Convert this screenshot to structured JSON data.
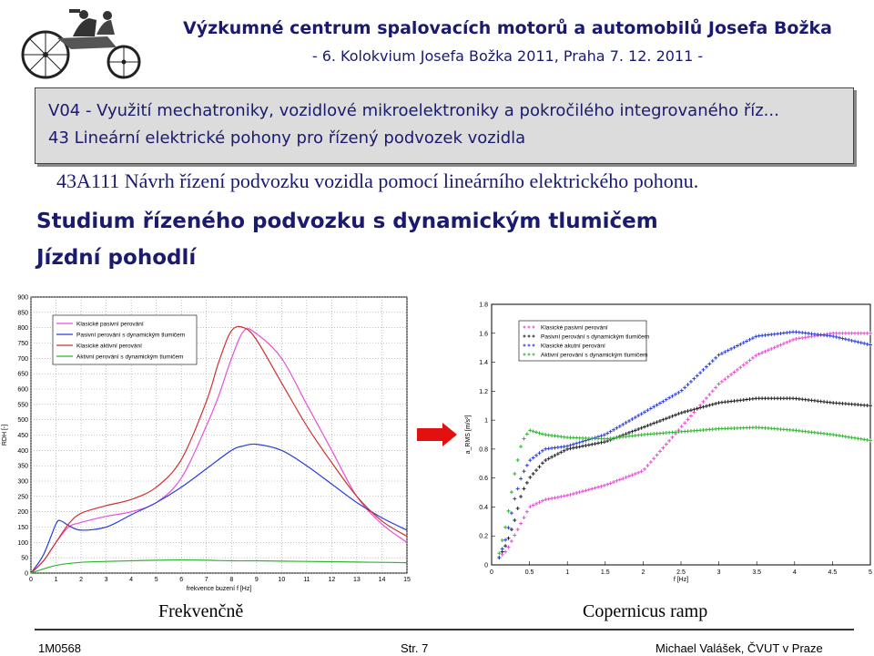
{
  "header": {
    "title": "Výzkumné centrum spalovacích motorů a automobilů Josefa Božka",
    "subtitle": "- 6. Kolokvium Josefa Božka 2011, Praha 7. 12. 2011 -"
  },
  "topic_box": {
    "line1": "V04 - Využití mechatroniky, vozidlové mikroelektroniky a pokročilého integrovaného říz...",
    "line2": "43 Lineární elektrické pohony pro řízený podvozek vozidla"
  },
  "subtopic": "43A111 Návrh řízení podvozku vozidla pomocí lineárního elektrického pohonu.",
  "heading1": "Studium řízeného podvozku s dynamickým tlumičem",
  "heading2": "Jízdní pohodlí",
  "captions": {
    "left": "Frekvenčně",
    "right": "Copernicus ramp"
  },
  "footer": {
    "left": "1M0568",
    "center": "Str. 7",
    "right": "Michael Valášek, ČVUT v Praze"
  },
  "colors": {
    "navy": "#1a1a6e",
    "arrow": "#e31010"
  },
  "chart_data": [
    {
      "type": "line",
      "ylabel": "RDH [-]",
      "xlabel": "frekvence buzení f [Hz]",
      "xlim": [
        0,
        15
      ],
      "ylim": [
        0,
        900
      ],
      "xticks": [
        0,
        1,
        2,
        3,
        4,
        5,
        6,
        7,
        8,
        9,
        10,
        11,
        12,
        13,
        14,
        15
      ],
      "yticks": [
        0,
        50,
        100,
        150,
        200,
        250,
        300,
        350,
        400,
        450,
        500,
        550,
        600,
        650,
        700,
        750,
        800,
        850,
        900
      ],
      "grid": true,
      "legend": "top-left",
      "series": [
        {
          "name": "Klasické pasivní perování",
          "color": "#e64fd6",
          "x": [
            0,
            0.5,
            1,
            1.5,
            2,
            3,
            4,
            5,
            6,
            7,
            7.5,
            8,
            8.5,
            9,
            10,
            11,
            12,
            13,
            14,
            15
          ],
          "y": [
            0,
            40,
            100,
            150,
            165,
            185,
            200,
            230,
            310,
            480,
            580,
            700,
            790,
            780,
            700,
            550,
            400,
            250,
            160,
            100
          ]
        },
        {
          "name": "Pasivní perování s dynamickým tlumičem",
          "color": "#2b3fd6",
          "x": [
            0,
            0.5,
            1,
            1.2,
            1.5,
            2,
            3,
            4,
            5,
            6,
            7,
            8,
            8.5,
            9,
            10,
            11,
            12,
            13,
            14,
            15
          ],
          "y": [
            0,
            60,
            160,
            170,
            155,
            140,
            150,
            190,
            230,
            280,
            340,
            400,
            415,
            420,
            400,
            350,
            290,
            230,
            180,
            140
          ]
        },
        {
          "name": "Klasické aktivní perování",
          "color": "#d03030",
          "x": [
            0,
            0.5,
            1,
            1.5,
            2,
            3,
            4,
            5,
            6,
            7,
            7.5,
            8,
            8.5,
            9,
            10,
            11,
            12,
            13,
            14,
            15
          ],
          "y": [
            0,
            40,
            100,
            160,
            195,
            220,
            240,
            280,
            370,
            560,
            690,
            790,
            800,
            760,
            620,
            480,
            360,
            250,
            170,
            120
          ]
        },
        {
          "name": "Aktivní perování s dynamickým tlumičem",
          "color": "#2fb52f",
          "x": [
            0,
            1,
            2,
            3,
            4,
            5,
            6,
            7,
            8,
            9,
            10,
            11,
            12,
            13,
            14,
            15
          ],
          "y": [
            0,
            25,
            35,
            38,
            40,
            42,
            43,
            42,
            40,
            40,
            39,
            38,
            37,
            36,
            35,
            34
          ]
        }
      ]
    },
    {
      "type": "scatter",
      "ylabel": "a_RMS [m/s²]",
      "xlabel": "f [Hz]",
      "xlim": [
        0,
        5
      ],
      "ylim": [
        0,
        1.8
      ],
      "xticks": [
        0,
        0.5,
        1,
        1.5,
        2,
        2.5,
        3,
        3.5,
        4,
        4.5,
        5
      ],
      "yticks": [
        0,
        0.2,
        0.4,
        0.6,
        0.8,
        1,
        1.2,
        1.4,
        1.6,
        1.8
      ],
      "grid": false,
      "legend": "top-left",
      "series": [
        {
          "name": "Klasické pasivní perování",
          "color": "#e64fd6",
          "x": [
            0.1,
            0.2,
            0.3,
            0.4,
            0.5,
            0.7,
            1,
            1.5,
            2,
            2.5,
            3,
            3.5,
            4,
            4.5,
            5
          ],
          "y": [
            0.05,
            0.1,
            0.2,
            0.3,
            0.4,
            0.45,
            0.48,
            0.55,
            0.65,
            0.95,
            1.25,
            1.45,
            1.56,
            1.6,
            1.6
          ]
        },
        {
          "name": "Pasivní perování s dynamickým tlumičem",
          "color": "#222222",
          "x": [
            0.1,
            0.2,
            0.3,
            0.4,
            0.5,
            0.7,
            1,
            1.5,
            2,
            2.5,
            3,
            3.5,
            4,
            4.5,
            5
          ],
          "y": [
            0.05,
            0.15,
            0.3,
            0.5,
            0.6,
            0.72,
            0.8,
            0.85,
            0.95,
            1.05,
            1.12,
            1.15,
            1.15,
            1.12,
            1.1
          ]
        },
        {
          "name": "Klasické akutní perování",
          "color": "#2b3fd6",
          "x": [
            0.1,
            0.2,
            0.3,
            0.4,
            0.5,
            0.7,
            1,
            1.5,
            2,
            2.5,
            3,
            3.5,
            4,
            4.5,
            5
          ],
          "y": [
            0.05,
            0.2,
            0.45,
            0.62,
            0.72,
            0.8,
            0.82,
            0.9,
            1.05,
            1.2,
            1.45,
            1.58,
            1.61,
            1.58,
            1.52
          ]
        },
        {
          "name": "Aktivní perování s dynamickým tlumičem",
          "color": "#2fb52f",
          "x": [
            0.1,
            0.2,
            0.3,
            0.4,
            0.5,
            0.7,
            1,
            1.5,
            2,
            2.5,
            3,
            3.5,
            4,
            4.5,
            5
          ],
          "y": [
            0.08,
            0.3,
            0.62,
            0.85,
            0.93,
            0.9,
            0.88,
            0.87,
            0.9,
            0.92,
            0.94,
            0.95,
            0.93,
            0.9,
            0.86
          ]
        }
      ]
    }
  ]
}
